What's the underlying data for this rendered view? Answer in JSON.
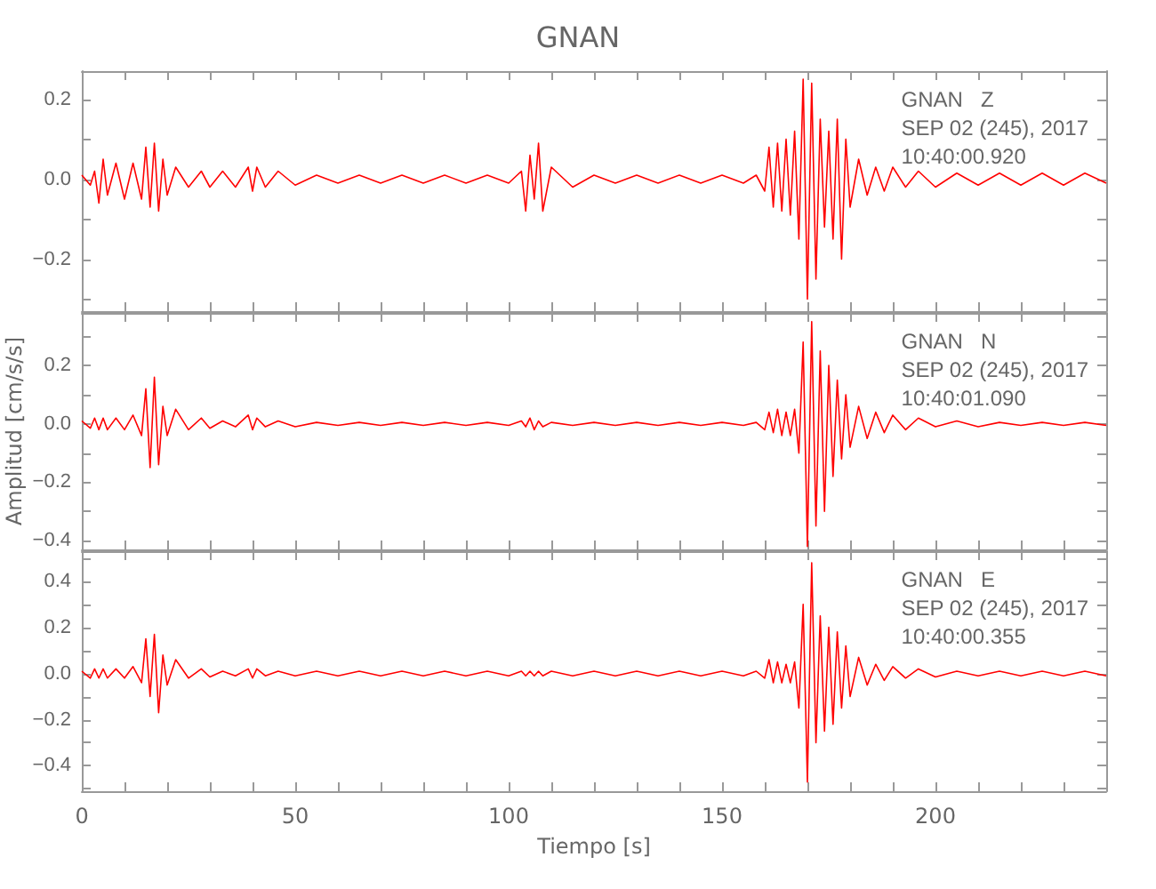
{
  "chart_data": [
    {
      "type": "line",
      "title": "GNAN",
      "tick_labels": "y",
      "marker": "none",
      "annotations": [
        "GNAN   Z",
        "SEP 02 (245), 2017",
        "10:40:00.920"
      ],
      "xlim": [
        0,
        240
      ],
      "xticks": [
        {
          "value": 0,
          "label": null
        },
        {
          "value": 10,
          "label": null
        },
        {
          "value": 20,
          "label": null
        },
        {
          "value": 30,
          "label": null
        },
        {
          "value": 40,
          "label": null
        },
        {
          "value": 50,
          "label": null
        },
        {
          "value": 60,
          "label": null
        },
        {
          "value": 70,
          "label": null
        },
        {
          "value": 80,
          "label": null
        },
        {
          "value": 90,
          "label": null
        },
        {
          "value": 100,
          "label": null
        },
        {
          "value": 110,
          "label": null
        },
        {
          "value": 120,
          "label": null
        },
        {
          "value": 130,
          "label": null
        },
        {
          "value": 140,
          "label": null
        },
        {
          "value": 150,
          "label": null
        },
        {
          "value": 160,
          "label": null
        },
        {
          "value": 170,
          "label": null
        },
        {
          "value": 180,
          "label": null
        },
        {
          "value": 190,
          "label": null
        },
        {
          "value": 200,
          "label": null
        },
        {
          "value": 210,
          "label": null
        },
        {
          "value": 220,
          "label": null
        },
        {
          "value": 230,
          "label": null
        },
        {
          "value": 240,
          "label": null
        }
      ],
      "ylim": [
        -0.33,
        0.27
      ],
      "yticks": [
        {
          "value": -0.3,
          "label": null
        },
        {
          "value": -0.2,
          "label": "−0.2"
        },
        {
          "value": -0.1,
          "label": null
        },
        {
          "value": 0,
          "label": "0.0"
        },
        {
          "value": 0.1,
          "label": null
        },
        {
          "value": 0.2,
          "label": "0.2"
        }
      ],
      "x": [
        0,
        2,
        3,
        4,
        5,
        6,
        8,
        10,
        12,
        14,
        15,
        16,
        17,
        18,
        19,
        20,
        22,
        25,
        28,
        30,
        33,
        36,
        39,
        40,
        41,
        43,
        46,
        50,
        55,
        60,
        65,
        70,
        75,
        80,
        85,
        90,
        95,
        100,
        103,
        104,
        105,
        106,
        107,
        108,
        110,
        115,
        120,
        125,
        130,
        135,
        140,
        145,
        150,
        155,
        158,
        160,
        161,
        162,
        163,
        164,
        165,
        166,
        167,
        168,
        169,
        170,
        171,
        172,
        173,
        174,
        175,
        176,
        177,
        178,
        179,
        180,
        182,
        184,
        186,
        188,
        190,
        193,
        196,
        200,
        205,
        210,
        215,
        220,
        225,
        230,
        235,
        240
      ],
      "series": [
        {
          "color": "#ff0000",
          "values": [
            0.01,
            -0.015,
            0.02,
            -0.06,
            0.05,
            -0.04,
            0.04,
            -0.05,
            0.04,
            -0.05,
            0.08,
            -0.07,
            0.09,
            -0.08,
            0.05,
            -0.04,
            0.03,
            -0.02,
            0.02,
            -0.02,
            0.02,
            -0.02,
            0.03,
            -0.03,
            0.03,
            -0.02,
            0.02,
            -0.015,
            0.01,
            -0.01,
            0.01,
            -0.01,
            0.01,
            -0.01,
            0.01,
            -0.01,
            0.01,
            -0.01,
            0.02,
            -0.08,
            0.06,
            -0.05,
            0.09,
            -0.08,
            0.03,
            -0.02,
            0.01,
            -0.01,
            0.01,
            -0.01,
            0.01,
            -0.01,
            0.01,
            -0.01,
            0.01,
            -0.03,
            0.08,
            -0.07,
            0.09,
            -0.08,
            0.1,
            -0.09,
            0.12,
            -0.15,
            0.25,
            -0.3,
            0.24,
            -0.25,
            0.15,
            -0.12,
            0.12,
            -0.15,
            0.15,
            -0.2,
            0.1,
            -0.07,
            0.05,
            -0.04,
            0.03,
            -0.03,
            0.03,
            -0.02,
            0.02,
            -0.02,
            0.015,
            -0.015,
            0.015,
            -0.015,
            0.015,
            -0.015,
            0.015,
            -0.01
          ]
        }
      ]
    },
    {
      "type": "line",
      "ylabel": "Amplitud [cm/s/s]",
      "tick_labels": "y",
      "marker": "none",
      "annotations": [
        "GNAN   N",
        "SEP 02 (245), 2017",
        "10:40:01.090"
      ],
      "xlim": [
        0,
        240
      ],
      "xticks": [
        {
          "value": 0,
          "label": null
        },
        {
          "value": 10,
          "label": null
        },
        {
          "value": 20,
          "label": null
        },
        {
          "value": 30,
          "label": null
        },
        {
          "value": 40,
          "label": null
        },
        {
          "value": 50,
          "label": null
        },
        {
          "value": 60,
          "label": null
        },
        {
          "value": 70,
          "label": null
        },
        {
          "value": 80,
          "label": null
        },
        {
          "value": 90,
          "label": null
        },
        {
          "value": 100,
          "label": null
        },
        {
          "value": 110,
          "label": null
        },
        {
          "value": 120,
          "label": null
        },
        {
          "value": 130,
          "label": null
        },
        {
          "value": 140,
          "label": null
        },
        {
          "value": 150,
          "label": null
        },
        {
          "value": 160,
          "label": null
        },
        {
          "value": 170,
          "label": null
        },
        {
          "value": 180,
          "label": null
        },
        {
          "value": 190,
          "label": null
        },
        {
          "value": 200,
          "label": null
        },
        {
          "value": 210,
          "label": null
        },
        {
          "value": 220,
          "label": null
        },
        {
          "value": 230,
          "label": null
        },
        {
          "value": 240,
          "label": null
        }
      ],
      "ylim": [
        -0.43,
        0.38
      ],
      "yticks": [
        {
          "value": -0.4,
          "label": "−0.4"
        },
        {
          "value": -0.3,
          "label": null
        },
        {
          "value": -0.2,
          "label": "−0.2"
        },
        {
          "value": -0.1,
          "label": null
        },
        {
          "value": 0,
          "label": "0.0"
        },
        {
          "value": 0.1,
          "label": null
        },
        {
          "value": 0.2,
          "label": "0.2"
        },
        {
          "value": 0.3,
          "label": null
        }
      ],
      "x": [
        0,
        2,
        3,
        4,
        5,
        6,
        8,
        10,
        12,
        14,
        15,
        16,
        17,
        18,
        19,
        20,
        22,
        25,
        28,
        30,
        33,
        36,
        39,
        40,
        41,
        43,
        46,
        50,
        55,
        60,
        65,
        70,
        75,
        80,
        85,
        90,
        95,
        100,
        103,
        104,
        105,
        106,
        107,
        108,
        110,
        115,
        120,
        125,
        130,
        135,
        140,
        145,
        150,
        155,
        158,
        160,
        161,
        162,
        163,
        164,
        165,
        166,
        167,
        168,
        169,
        170,
        171,
        172,
        173,
        174,
        175,
        176,
        177,
        178,
        179,
        180,
        182,
        184,
        186,
        188,
        190,
        193,
        196,
        200,
        205,
        210,
        215,
        220,
        225,
        230,
        235,
        240
      ],
      "series": [
        {
          "color": "#ff0000",
          "values": [
            0.01,
            -0.015,
            0.02,
            -0.02,
            0.02,
            -0.02,
            0.02,
            -0.02,
            0.03,
            -0.04,
            0.12,
            -0.15,
            0.16,
            -0.14,
            0.06,
            -0.04,
            0.05,
            -0.02,
            0.02,
            -0.015,
            0.01,
            -0.01,
            0.03,
            -0.02,
            0.02,
            -0.01,
            0.01,
            -0.01,
            0.005,
            -0.005,
            0.005,
            -0.005,
            0.005,
            -0.005,
            0.005,
            -0.005,
            0.005,
            -0.005,
            0.01,
            -0.01,
            0.02,
            -0.02,
            0.01,
            -0.01,
            0.005,
            -0.005,
            0.005,
            -0.005,
            0.005,
            -0.005,
            0.005,
            -0.005,
            0.005,
            -0.005,
            0.005,
            -0.02,
            0.04,
            -0.03,
            0.05,
            -0.04,
            0.04,
            -0.04,
            0.05,
            -0.1,
            0.28,
            -0.42,
            0.35,
            -0.35,
            0.25,
            -0.3,
            0.2,
            -0.18,
            0.15,
            -0.12,
            0.1,
            -0.08,
            0.06,
            -0.05,
            0.04,
            -0.03,
            0.03,
            -0.02,
            0.02,
            -0.01,
            0.01,
            -0.01,
            0.005,
            -0.005,
            0.005,
            -0.005,
            0.005,
            -0.005
          ]
        }
      ]
    },
    {
      "type": "line",
      "xlabel": "Tiempo [s]",
      "marker": "none",
      "annotations": [
        "GNAN   E",
        "SEP 02 (245), 2017",
        "10:40:00.355"
      ],
      "xlim": [
        0,
        240
      ],
      "xticks": [
        0,
        {
          "value": 10,
          "label": null
        },
        {
          "value": 20,
          "label": null
        },
        {
          "value": 30,
          "label": null
        },
        {
          "value": 40,
          "label": null
        },
        50,
        {
          "value": 60,
          "label": null
        },
        {
          "value": 70,
          "label": null
        },
        {
          "value": 80,
          "label": null
        },
        {
          "value": 90,
          "label": null
        },
        100,
        {
          "value": 110,
          "label": null
        },
        {
          "value": 120,
          "label": null
        },
        {
          "value": 130,
          "label": null
        },
        {
          "value": 140,
          "label": null
        },
        150,
        {
          "value": 160,
          "label": null
        },
        {
          "value": 170,
          "label": null
        },
        {
          "value": 180,
          "label": null
        },
        {
          "value": 190,
          "label": null
        },
        200,
        {
          "value": 210,
          "label": null
        },
        {
          "value": 220,
          "label": null
        },
        {
          "value": 230,
          "label": null
        },
        {
          "value": 240,
          "label": null
        }
      ],
      "ylim": [
        -0.51,
        0.53
      ],
      "yticks": [
        {
          "value": -0.5,
          "label": null
        },
        {
          "value": -0.4,
          "label": "−0.4"
        },
        {
          "value": -0.3,
          "label": null
        },
        {
          "value": -0.2,
          "label": "−0.2"
        },
        {
          "value": -0.1,
          "label": null
        },
        {
          "value": 0,
          "label": "0.0"
        },
        {
          "value": 0.1,
          "label": null
        },
        {
          "value": 0.2,
          "label": "0.2"
        },
        {
          "value": 0.3,
          "label": null
        },
        {
          "value": 0.4,
          "label": "0.4"
        },
        {
          "value": 0.5,
          "label": null
        }
      ],
      "x": [
        0,
        2,
        3,
        4,
        5,
        6,
        8,
        10,
        12,
        14,
        15,
        16,
        17,
        18,
        19,
        20,
        22,
        25,
        28,
        30,
        33,
        36,
        39,
        40,
        41,
        43,
        46,
        50,
        55,
        60,
        65,
        70,
        75,
        80,
        85,
        90,
        95,
        100,
        103,
        104,
        105,
        106,
        107,
        108,
        110,
        115,
        120,
        125,
        130,
        135,
        140,
        145,
        150,
        155,
        158,
        160,
        161,
        162,
        163,
        164,
        165,
        166,
        167,
        168,
        169,
        170,
        171,
        172,
        173,
        174,
        175,
        176,
        177,
        178,
        179,
        180,
        182,
        184,
        186,
        188,
        190,
        193,
        196,
        200,
        205,
        210,
        215,
        220,
        225,
        230,
        235,
        240
      ],
      "series": [
        {
          "color": "#ff0000",
          "values": [
            0.01,
            -0.02,
            0.02,
            -0.02,
            0.02,
            -0.02,
            0.02,
            -0.02,
            0.03,
            -0.04,
            0.15,
            -0.1,
            0.17,
            -0.17,
            0.08,
            -0.05,
            0.06,
            -0.02,
            0.02,
            -0.015,
            0.01,
            -0.01,
            0.02,
            -0.02,
            0.02,
            -0.01,
            0.01,
            -0.01,
            0.01,
            -0.01,
            0.01,
            -0.01,
            0.01,
            -0.01,
            0.01,
            -0.01,
            0.01,
            -0.01,
            0.01,
            -0.01,
            0.01,
            -0.01,
            0.01,
            -0.01,
            0.01,
            -0.01,
            0.01,
            -0.01,
            0.01,
            -0.01,
            0.01,
            -0.01,
            0.01,
            -0.01,
            0.01,
            -0.02,
            0.06,
            -0.04,
            0.05,
            -0.04,
            0.04,
            -0.04,
            0.05,
            -0.15,
            0.3,
            -0.47,
            0.48,
            -0.3,
            0.25,
            -0.25,
            0.2,
            -0.22,
            0.18,
            -0.15,
            0.12,
            -0.1,
            0.07,
            -0.05,
            0.04,
            -0.03,
            0.03,
            -0.02,
            0.02,
            -0.015,
            0.01,
            -0.01,
            0.01,
            -0.01,
            0.01,
            -0.01,
            0.01,
            -0.01
          ]
        }
      ]
    }
  ]
}
